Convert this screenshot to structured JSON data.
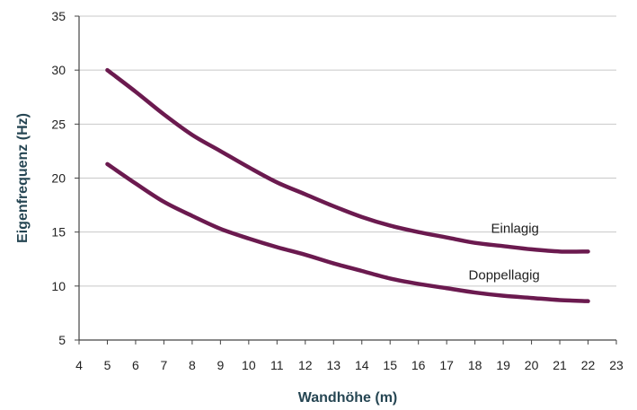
{
  "chart_data": {
    "type": "line",
    "title": "",
    "xlabel": "Wandhöhe (m)",
    "ylabel": "Eigenfrequenz (Hz)",
    "xlim": [
      4,
      23
    ],
    "ylim": [
      5,
      35
    ],
    "x_ticks": [
      4,
      5,
      6,
      7,
      8,
      9,
      10,
      11,
      12,
      13,
      14,
      15,
      16,
      17,
      18,
      19,
      20,
      21,
      22,
      23
    ],
    "y_ticks": [
      5,
      10,
      15,
      20,
      25,
      30,
      35
    ],
    "grid": "horizontal",
    "legend": "inline labels",
    "line_color": "#6b1a4f",
    "grid_color": "#c8c8c8",
    "x": [
      5,
      6,
      7,
      8,
      9,
      10,
      11,
      12,
      13,
      14,
      15,
      16,
      17,
      18,
      19,
      20,
      21,
      22
    ],
    "series": [
      {
        "name": "Einlagig",
        "values": [
          30.0,
          28.0,
          25.9,
          24.0,
          22.5,
          21.0,
          19.6,
          18.5,
          17.4,
          16.4,
          15.6,
          15.0,
          14.5,
          14.0,
          13.7,
          13.4,
          13.2,
          13.2
        ]
      },
      {
        "name": "Doppellagig",
        "values": [
          21.3,
          19.5,
          17.8,
          16.5,
          15.3,
          14.4,
          13.6,
          12.9,
          12.1,
          11.4,
          10.7,
          10.2,
          9.8,
          9.4,
          9.1,
          8.9,
          8.7,
          8.6
        ]
      }
    ]
  }
}
